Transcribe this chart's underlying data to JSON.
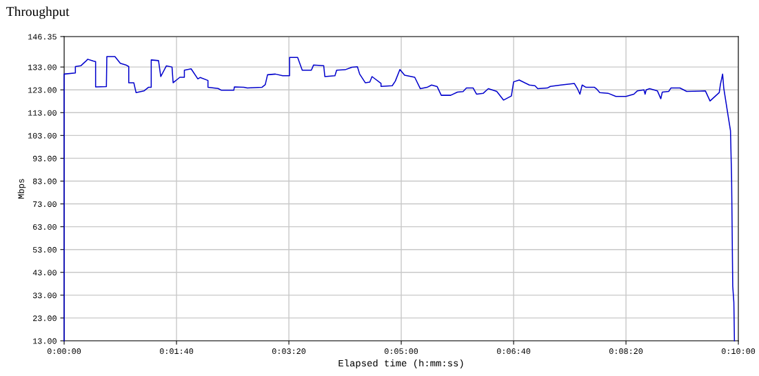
{
  "chart_data": {
    "type": "line",
    "title": "Throughput",
    "xlabel": "Elapsed time (h:mm:ss)",
    "ylabel": "Mbps",
    "x": [
      0,
      0,
      10,
      10,
      15,
      19,
      21,
      26,
      28,
      28,
      37.6,
      38,
      45.2,
      50,
      55,
      57.5,
      57.5,
      62,
      64,
      71,
      75,
      77.5,
      77.5,
      84,
      86,
      91,
      96,
      97,
      103,
      107,
      107,
      113,
      119,
      121,
      128,
      128,
      137,
      140,
      151,
      151.5,
      160,
      163,
      176,
      179,
      181,
      188,
      194.5,
      200.6,
      200.6,
      207.8,
      211.9,
      220,
      222,
      231,
      232,
      241,
      242.5,
      250,
      256,
      261,
      263,
      268,
      272,
      274,
      282,
      282,
      292,
      294.7,
      298.8,
      303,
      312,
      317,
      323,
      327,
      332,
      335.6,
      344,
      350,
      355,
      358,
      364,
      367,
      373,
      377.5,
      385,
      391,
      398,
      400,
      405,
      414,
      419,
      421.5,
      430,
      432.7,
      442,
      454,
      457,
      459,
      461,
      464.4,
      472,
      474,
      476.7,
      484,
      491,
      500,
      507,
      510,
      516,
      517,
      518,
      521,
      528,
      531,
      532.3,
      538,
      540,
      548,
      554,
      570.7,
      574.8,
      583,
      584,
      586,
      587,
      591,
      593,
      594,
      595,
      596,
      596.5
    ],
    "series": [
      {
        "color": "#0000cc",
        "values": [
          13,
          129.9,
          130.4,
          133.2,
          133.6,
          135.4,
          136.4,
          135.6,
          135.4,
          124.3,
          124.4,
          137.6,
          137.6,
          134.6,
          133.9,
          133.2,
          126.1,
          126.1,
          121.8,
          122.5,
          124.1,
          124.1,
          136.1,
          135.8,
          128.8,
          133.5,
          133,
          126.1,
          128.5,
          128.5,
          131.6,
          132.2,
          127.8,
          128.4,
          127.1,
          124.1,
          123.6,
          122.8,
          122.8,
          124.3,
          124.1,
          123.8,
          124.1,
          125.3,
          129.6,
          129.9,
          129.2,
          129.2,
          137.2,
          137.2,
          131.6,
          131.6,
          133.9,
          133.6,
          128.8,
          129.2,
          131.6,
          131.8,
          132.9,
          133.1,
          129.9,
          126.1,
          126.4,
          128.8,
          125.8,
          124.5,
          124.8,
          126.8,
          131.9,
          129.4,
          128.5,
          123.5,
          124.1,
          125.1,
          124.4,
          120.6,
          120.6,
          122,
          122.2,
          123.8,
          123.8,
          121.1,
          121.5,
          123.5,
          122.3,
          118.5,
          120.3,
          126.5,
          127.3,
          125.1,
          124.8,
          123.5,
          123.8,
          124.5,
          125.1,
          125.8,
          123.3,
          121.1,
          125.1,
          124.1,
          124.1,
          123.3,
          121.8,
          121.5,
          120.1,
          120.1,
          121.1,
          122.5,
          123,
          121.1,
          123,
          123.5,
          122.5,
          119.1,
          122,
          122.3,
          123.8,
          123.8,
          122.3,
          122.5,
          118.1,
          121.8,
          125.3,
          129.9,
          123.8,
          111.2,
          105.1,
          83.9,
          36.9,
          29.9,
          13
        ]
      }
    ],
    "xlim": [
      0,
      600
    ],
    "xticks": [
      {
        "value": 0,
        "label": "0:00:00"
      },
      {
        "value": 100,
        "label": "0:01:40"
      },
      {
        "value": 200,
        "label": "0:03:20"
      },
      {
        "value": 300,
        "label": "0:05:00"
      },
      {
        "value": 400,
        "label": "0:06:40"
      },
      {
        "value": 500,
        "label": "0:08:20"
      },
      {
        "value": 600,
        "label": "0:10:00"
      }
    ],
    "ylim": [
      13,
      146.35
    ],
    "yticks": [
      {
        "value": 13,
        "label": "13.00"
      },
      {
        "value": 23,
        "label": "23.00"
      },
      {
        "value": 33,
        "label": "33.00"
      },
      {
        "value": 43,
        "label": "43.00"
      },
      {
        "value": 53,
        "label": "53.00"
      },
      {
        "value": 63,
        "label": "63.00"
      },
      {
        "value": 73,
        "label": "73.00"
      },
      {
        "value": 83,
        "label": "83.00"
      },
      {
        "value": 93,
        "label": "93.00"
      },
      {
        "value": 103,
        "label": "103.00"
      },
      {
        "value": 113,
        "label": "113.00"
      },
      {
        "value": 123,
        "label": "123.00"
      },
      {
        "value": 133,
        "label": "133.00"
      },
      {
        "value": 146.35,
        "label": "146.35"
      }
    ],
    "grid": true,
    "marker": "none",
    "line_style": "solid"
  }
}
